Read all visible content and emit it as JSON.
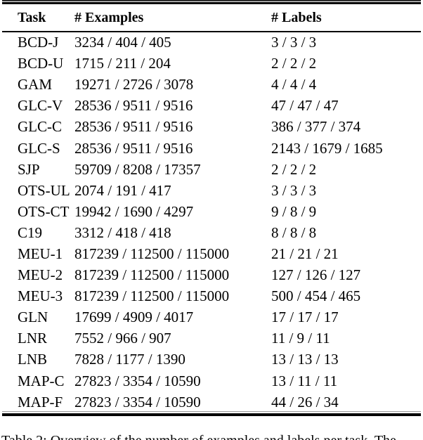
{
  "table": {
    "columns": [
      "Task",
      "# Examples",
      "# Labels"
    ],
    "rows": [
      {
        "task": "BCD-J",
        "examples": "3234 / 404 / 405",
        "labels": "3 / 3 / 3"
      },
      {
        "task": "BCD-U",
        "examples": "1715 / 211 / 204",
        "labels": "2 / 2 / 2"
      },
      {
        "task": "GAM",
        "examples": "19271 / 2726 / 3078",
        "labels": "4 / 4 / 4"
      },
      {
        "task": "GLC-V",
        "examples": "28536 / 9511 / 9516",
        "labels": "47 / 47 / 47"
      },
      {
        "task": "GLC-C",
        "examples": "28536 / 9511 / 9516",
        "labels": "386 / 377 / 374"
      },
      {
        "task": "GLC-S",
        "examples": "28536 / 9511 / 9516",
        "labels": "2143 / 1679 / 1685"
      },
      {
        "task": "SJP",
        "examples": "59709 / 8208 / 17357",
        "labels": "2 / 2 / 2"
      },
      {
        "task": "OTS-UL",
        "examples": "2074 / 191 / 417",
        "labels": "3 / 3 / 3"
      },
      {
        "task": "OTS-CT",
        "examples": "19942 / 1690 / 4297",
        "labels": "9 / 8 / 9"
      },
      {
        "task": "C19",
        "examples": "3312 / 418 / 418",
        "labels": "8 / 8 / 8"
      },
      {
        "task": "MEU-1",
        "examples": "817239 / 112500 / 115000",
        "labels": "21 / 21 / 21"
      },
      {
        "task": "MEU-2",
        "examples": "817239 / 112500 / 115000",
        "labels": "127 / 126 / 127"
      },
      {
        "task": "MEU-3",
        "examples": "817239 / 112500 / 115000",
        "labels": "500 / 454 / 465"
      },
      {
        "task": "GLN",
        "examples": "17699 / 4909 / 4017",
        "labels": "17 / 17 / 17"
      },
      {
        "task": "LNR",
        "examples": "7552 / 966 / 907",
        "labels": "11 / 9 / 11"
      },
      {
        "task": "LNB",
        "examples": "7828 / 1177 / 1390",
        "labels": "13 / 13 / 13"
      },
      {
        "task": "MAP-C",
        "examples": "27823 / 3354 / 10590",
        "labels": "13 / 11 / 11"
      },
      {
        "task": "MAP-F",
        "examples": "27823 / 3354 / 10590",
        "labels": "44 / 26 / 34"
      }
    ]
  },
  "caption": {
    "text": "Table 2: Overview of the number of examples and labels per task. The"
  },
  "colors": {
    "text": "#000000",
    "background": "#ffffff",
    "rule": "#000000"
  }
}
